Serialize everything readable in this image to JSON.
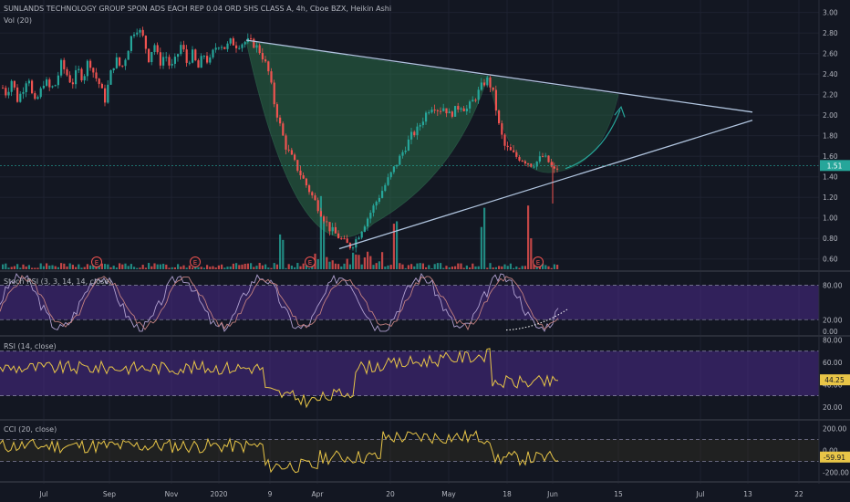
{
  "symbol_title": "SUNLANDS TECHNOLOGY GROUP SPON ADS EACH REP 0.04 ORD SHS CLASS A, 4h, Cboe BZX, Heikin Ashi",
  "volume_label": "Vol (20)",
  "stoch_label": "Stoch RSI (3, 3, 14, 14, close)",
  "rsi_label": "RSI (14, close)",
  "cci_label": "CCI (20, close)",
  "earnings_marker": "E",
  "colors": {
    "background": "#131722",
    "up": "#26a69a",
    "down": "#ef5350",
    "trendline": "#b0c4de",
    "cup_fill": "#2e7d4f",
    "band": "#4a2a8a",
    "indicator": "#e8c547",
    "stoch_k": "#b0a0d0",
    "stoch_d": "#c38080",
    "price_line": "#26a69a"
  },
  "chart_data": [
    {
      "type": "candlestick",
      "x_ticks": [
        "Jul",
        "Sep",
        "Nov",
        "2020",
        "9",
        "Apr",
        "20",
        "May",
        "18",
        "Jun",
        "15",
        "Jul",
        "13",
        "22"
      ],
      "y_ticks": [
        "3.00",
        "2.80",
        "2.60",
        "2.40",
        "2.20",
        "2.00",
        "1.80",
        "1.60",
        "1.40",
        "1.20",
        "1.00",
        "0.80",
        "0.60"
      ],
      "ylim": [
        0.5,
        3.05
      ],
      "last_price_label": "1.51",
      "last_price": 1.51,
      "close_path": [
        [
          0,
          2.3
        ],
        [
          6,
          2.2
        ],
        [
          12,
          2.35
        ],
        [
          18,
          2.15
        ],
        [
          24,
          2.25
        ],
        [
          30,
          2.4
        ],
        [
          36,
          2.1
        ],
        [
          42,
          2.2
        ],
        [
          48,
          2.35
        ],
        [
          54,
          2.25
        ],
        [
          60,
          2.3
        ],
        [
          66,
          2.5
        ],
        [
          72,
          2.4
        ],
        [
          78,
          2.3
        ],
        [
          84,
          2.45
        ],
        [
          90,
          2.35
        ],
        [
          96,
          2.55
        ],
        [
          102,
          2.4
        ],
        [
          108,
          2.3
        ],
        [
          114,
          2.15
        ],
        [
          120,
          2.4
        ],
        [
          126,
          2.55
        ],
        [
          132,
          2.45
        ],
        [
          138,
          2.6
        ],
        [
          144,
          2.8
        ],
        [
          150,
          2.85
        ],
        [
          156,
          2.75
        ],
        [
          162,
          2.55
        ],
        [
          168,
          2.7
        ],
        [
          174,
          2.5
        ],
        [
          180,
          2.6
        ],
        [
          186,
          2.45
        ],
        [
          192,
          2.55
        ],
        [
          198,
          2.7
        ],
        [
          204,
          2.5
        ],
        [
          210,
          2.6
        ],
        [
          216,
          2.45
        ],
        [
          222,
          2.6
        ],
        [
          228,
          2.5
        ],
        [
          234,
          2.65
        ],
        [
          240,
          2.7
        ],
        [
          246,
          2.65
        ],
        [
          252,
          2.72
        ],
        [
          258,
          2.68
        ],
        [
          264,
          2.7
        ],
        [
          270,
          2.72
        ],
        [
          276,
          2.7
        ],
        [
          282,
          2.65
        ],
        [
          288,
          2.55
        ],
        [
          294,
          2.4
        ],
        [
          300,
          2.1
        ],
        [
          306,
          1.9
        ],
        [
          312,
          1.7
        ],
        [
          318,
          1.6
        ],
        [
          324,
          1.5
        ],
        [
          330,
          1.4
        ],
        [
          336,
          1.3
        ],
        [
          342,
          1.2
        ],
        [
          348,
          1.1
        ],
        [
          354,
          1.0
        ],
        [
          360,
          0.9
        ],
        [
          366,
          0.85
        ],
        [
          372,
          0.8
        ],
        [
          378,
          0.75
        ],
        [
          384,
          0.72
        ],
        [
          390,
          0.8
        ],
        [
          396,
          0.9
        ],
        [
          402,
          1.0
        ],
        [
          408,
          1.1
        ],
        [
          414,
          1.2
        ],
        [
          420,
          1.3
        ],
        [
          426,
          1.4
        ],
        [
          432,
          1.5
        ],
        [
          438,
          1.6
        ],
        [
          444,
          1.7
        ],
        [
          450,
          1.8
        ],
        [
          456,
          1.85
        ],
        [
          462,
          1.95
        ],
        [
          468,
          2.05
        ],
        [
          474,
          2.1
        ],
        [
          480,
          2.05
        ],
        [
          486,
          2.08
        ],
        [
          492,
          2.0
        ],
        [
          498,
          2.05
        ],
        [
          504,
          2.1
        ],
        [
          510,
          2.05
        ],
        [
          516,
          2.12
        ],
        [
          522,
          2.2
        ],
        [
          528,
          2.3
        ],
        [
          534,
          2.35
        ],
        [
          540,
          2.2
        ],
        [
          546,
          1.9
        ],
        [
          552,
          1.7
        ],
        [
          558,
          1.65
        ],
        [
          564,
          1.6
        ],
        [
          570,
          1.58
        ],
        [
          576,
          1.55
        ],
        [
          582,
          1.52
        ],
        [
          588,
          1.55
        ],
        [
          594,
          1.6
        ],
        [
          600,
          1.55
        ],
        [
          606,
          1.45
        ],
        [
          612,
          1.5
        ]
      ],
      "volume_spike_x": [
        308,
        352,
        432,
        528,
        580
      ],
      "earnings_x": [
        106,
        214,
        340,
        590
      ]
    },
    {
      "type": "line",
      "name": "Stoch RSI",
      "y_ticks": [
        "80.00",
        "20.00",
        "0.00"
      ],
      "ylim": [
        -5,
        100
      ],
      "band": [
        20,
        80
      ]
    },
    {
      "type": "line",
      "name": "RSI",
      "y_ticks": [
        "80.00",
        "60.00",
        "40.00",
        "20.00"
      ],
      "ylim": [
        10,
        82
      ],
      "band": [
        30,
        70
      ],
      "last_value_label": "44.25",
      "last_value": 44.25
    },
    {
      "type": "line",
      "name": "CCI",
      "y_ticks": [
        "200.00",
        "0.00",
        "-200.00"
      ],
      "ylim": [
        -260,
        260
      ],
      "band": [
        -100,
        100
      ],
      "last_value_label": "-59.91",
      "last_value": -59.91
    }
  ]
}
